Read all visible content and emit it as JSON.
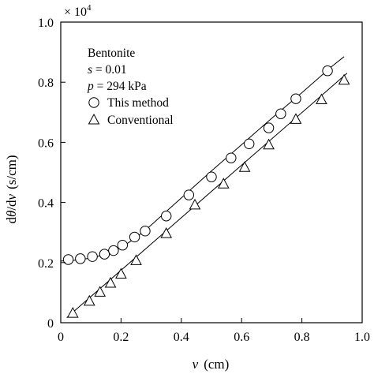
{
  "chart_data": {
    "type": "scatter",
    "x_axis": {
      "var": "v",
      "unit": "(cm)",
      "lim": [
        0,
        1.0
      ],
      "ticks": [
        0,
        0.2,
        0.4,
        0.6,
        0.8,
        1.0
      ],
      "tick_labels": [
        "0",
        "0.2",
        "0.4",
        "0.6",
        "0.8",
        "1.0"
      ]
    },
    "y_axis": {
      "label_prefix": "d",
      "label_theta": "θ",
      "label_mid": "/d",
      "label_v": "v",
      "unit": "(s/cm)",
      "lim": [
        0,
        1.0
      ],
      "ticks": [
        0,
        0.2,
        0.4,
        0.6,
        0.8,
        1.0
      ],
      "tick_labels": [
        "0",
        "0.2",
        "0.4",
        "0.6",
        "0.8",
        "1.0"
      ],
      "multiplier_base": "× 10",
      "multiplier_exp": "4"
    },
    "annotation": {
      "material": "Bentonite",
      "s_var": "s",
      "s_val": " = 0.01",
      "p_var": "p",
      "p_val": " = 294 kPa"
    },
    "grid": false,
    "legend_position": "top-left",
    "series": [
      {
        "name": "This method",
        "marker": "circle",
        "points": [
          [
            0.025,
            0.21
          ],
          [
            0.065,
            0.213
          ],
          [
            0.105,
            0.22
          ],
          [
            0.145,
            0.228
          ],
          [
            0.175,
            0.24
          ],
          [
            0.205,
            0.258
          ],
          [
            0.245,
            0.285
          ],
          [
            0.28,
            0.305
          ],
          [
            0.35,
            0.355
          ],
          [
            0.425,
            0.425
          ],
          [
            0.5,
            0.485
          ],
          [
            0.565,
            0.548
          ],
          [
            0.625,
            0.595
          ],
          [
            0.69,
            0.648
          ],
          [
            0.73,
            0.695
          ],
          [
            0.78,
            0.745
          ],
          [
            0.885,
            0.838
          ]
        ]
      },
      {
        "name": "Conventional",
        "marker": "triangle",
        "points": [
          [
            0.04,
            0.03
          ],
          [
            0.095,
            0.07
          ],
          [
            0.13,
            0.1
          ],
          [
            0.165,
            0.13
          ],
          [
            0.2,
            0.16
          ],
          [
            0.25,
            0.205
          ],
          [
            0.35,
            0.295
          ],
          [
            0.445,
            0.39
          ],
          [
            0.54,
            0.46
          ],
          [
            0.61,
            0.515
          ],
          [
            0.69,
            0.59
          ],
          [
            0.78,
            0.675
          ],
          [
            0.865,
            0.74
          ],
          [
            0.94,
            0.805
          ]
        ]
      }
    ],
    "fit_lines": [
      {
        "of": "This method",
        "points": [
          [
            0.0,
            0.205
          ],
          [
            0.05,
            0.208
          ],
          [
            0.1,
            0.215
          ],
          [
            0.15,
            0.228
          ],
          [
            0.2,
            0.25
          ],
          [
            0.25,
            0.283
          ],
          [
            0.3,
            0.325
          ],
          [
            0.35,
            0.37
          ],
          [
            0.4,
            0.415
          ],
          [
            0.5,
            0.505
          ],
          [
            0.6,
            0.592
          ],
          [
            0.7,
            0.68
          ],
          [
            0.8,
            0.765
          ],
          [
            0.9,
            0.853
          ],
          [
            0.94,
            0.885
          ]
        ]
      },
      {
        "of": "Conventional",
        "points": [
          [
            0.02,
            0.017
          ],
          [
            0.95,
            0.83
          ]
        ]
      }
    ]
  }
}
